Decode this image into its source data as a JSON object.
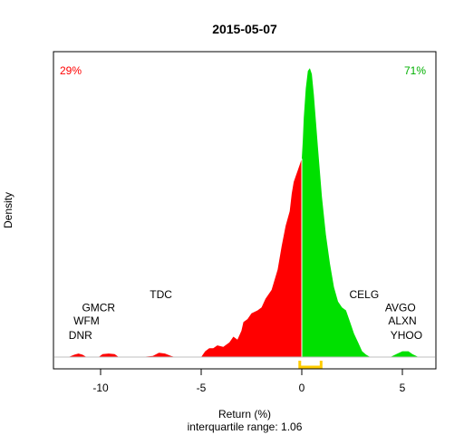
{
  "chart_data": {
    "type": "area",
    "title": "2015-05-07",
    "xlabel": "Return (%)",
    "subtitle": "interquartile range: 1.06",
    "ylabel": "Density",
    "xlim": [
      -12.3,
      6.3
    ],
    "ylim": [
      0,
      1
    ],
    "xticks": [
      -10,
      -5,
      0,
      5
    ],
    "grid": false,
    "negative_color": "#ff0000",
    "positive_color": "#00e000",
    "iqr_color": "#ffcc00",
    "iqr": [
      -0.1,
      0.96
    ],
    "negative_share": "29%",
    "positive_share": "71%",
    "density": {
      "x": [
        -12.0,
        -11.6,
        -11.3,
        -11.1,
        -10.9,
        -10.7,
        -10.1,
        -9.9,
        -9.6,
        -9.3,
        -9.1,
        -8.0,
        -7.4,
        -7.1,
        -6.8,
        -6.5,
        -6.3,
        -5.9,
        -5.0,
        -4.8,
        -4.6,
        -4.4,
        -4.2,
        -3.9,
        -3.6,
        -3.4,
        -3.2,
        -3.0,
        -2.9,
        -2.7,
        -2.5,
        -2.2,
        -2.0,
        -1.8,
        -1.5,
        -1.2,
        -1.0,
        -0.8,
        -0.6,
        -0.5,
        -0.4,
        -0.3,
        -0.2,
        -0.1,
        -0.05,
        0.0,
        0.05,
        0.1,
        0.2,
        0.3,
        0.4,
        0.5,
        0.6,
        0.8,
        1.0,
        1.2,
        1.4,
        1.6,
        1.8,
        2.0,
        2.2,
        2.4,
        2.6,
        2.8,
        3.0,
        3.2,
        3.4,
        3.6,
        4.0,
        4.4,
        4.7,
        5.0,
        5.3,
        5.5,
        5.8,
        6.0
      ],
      "y": [
        0.0,
        0.0,
        0.008,
        0.012,
        0.008,
        0.0,
        0.0,
        0.01,
        0.012,
        0.01,
        0.0,
        0.0,
        0.004,
        0.015,
        0.012,
        0.004,
        0.0,
        0.0,
        0.0,
        0.02,
        0.03,
        0.03,
        0.04,
        0.035,
        0.05,
        0.07,
        0.06,
        0.09,
        0.12,
        0.13,
        0.15,
        0.16,
        0.17,
        0.2,
        0.23,
        0.3,
        0.38,
        0.45,
        0.5,
        0.56,
        0.6,
        0.62,
        0.64,
        0.66,
        0.67,
        0.68,
        0.74,
        0.82,
        0.92,
        0.98,
        0.99,
        0.97,
        0.9,
        0.72,
        0.55,
        0.42,
        0.32,
        0.24,
        0.19,
        0.17,
        0.16,
        0.12,
        0.08,
        0.05,
        0.02,
        0.008,
        0.0,
        0.0,
        0.0,
        0.0,
        0.01,
        0.02,
        0.02,
        0.01,
        0.0,
        0.0
      ]
    },
    "labels": [
      {
        "text": "DNR",
        "x": -11.0,
        "y": 0.05
      },
      {
        "text": "WFM",
        "x": -10.7,
        "y": 0.1
      },
      {
        "text": "GMCR",
        "x": -10.1,
        "y": 0.145
      },
      {
        "text": "TDC",
        "x": -7.0,
        "y": 0.19
      },
      {
        "text": "CELG",
        "x": 3.1,
        "y": 0.19
      },
      {
        "text": "AVGO",
        "x": 4.9,
        "y": 0.145
      },
      {
        "text": "ALXN",
        "x": 5.0,
        "y": 0.1
      },
      {
        "text": "YHOO",
        "x": 5.2,
        "y": 0.05
      }
    ]
  }
}
